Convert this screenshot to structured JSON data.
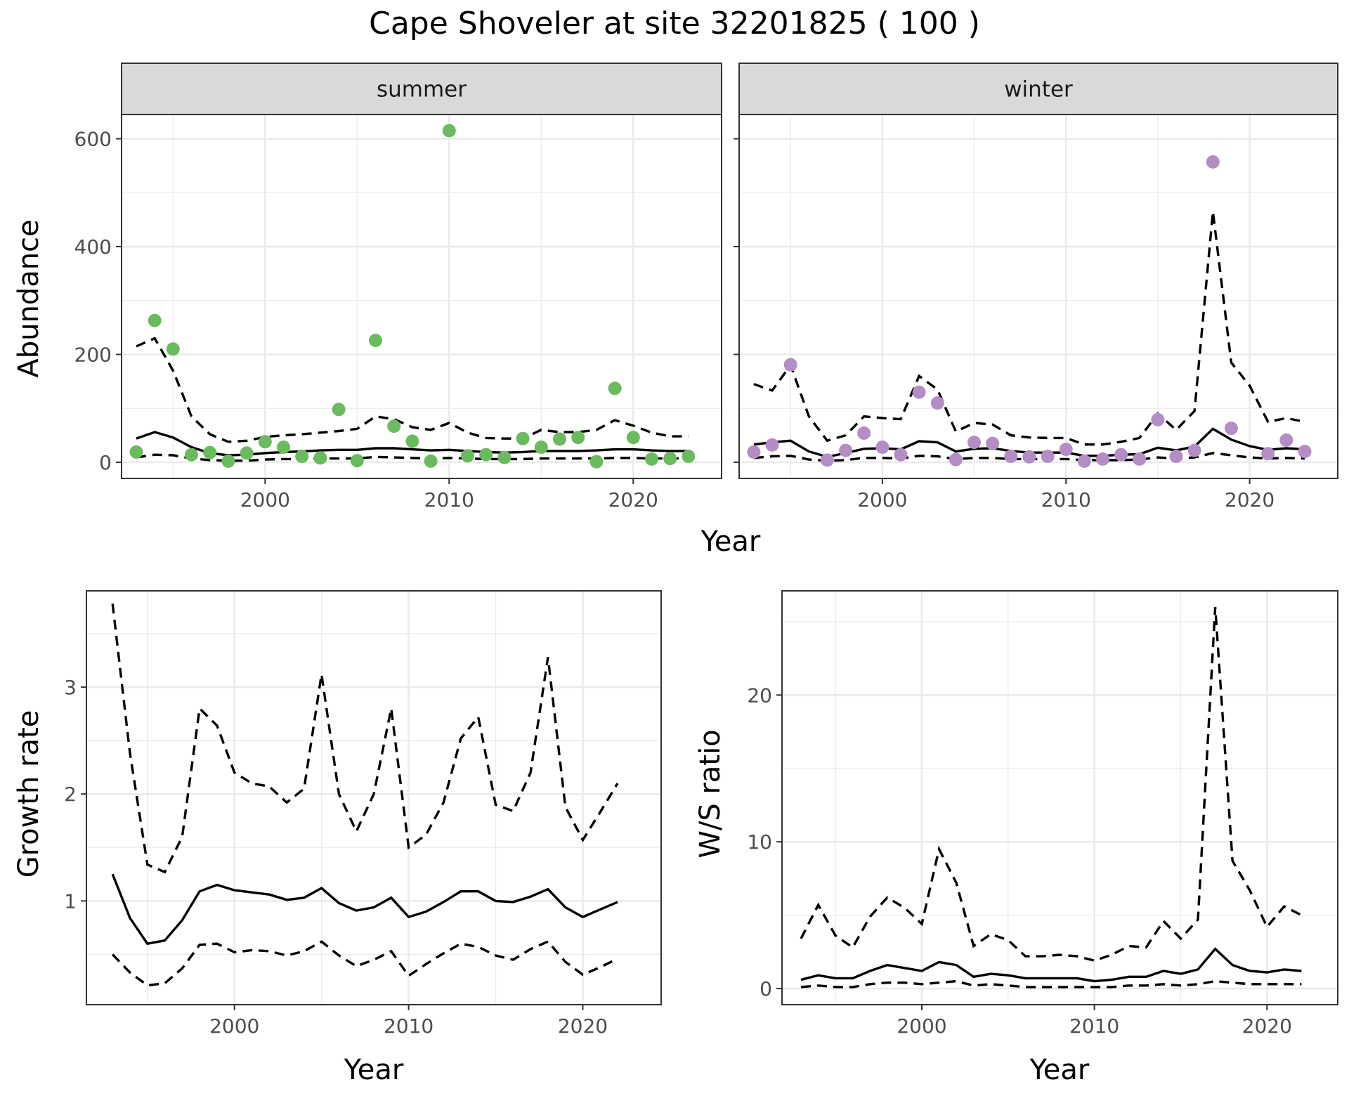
{
  "title": "Cape Shoveler at site 32201825 ( 100 )",
  "abundance_panel": {
    "ylabel": "Abundance",
    "xlabel": "Year",
    "facets": [
      "summer",
      "winter"
    ],
    "colors": {
      "summer": "#6abb5d",
      "winter": "#b48cc6"
    }
  },
  "growth_panel": {
    "ylabel": "Growth rate",
    "xlabel": "Year"
  },
  "ratio_panel": {
    "ylabel": "W/S ratio",
    "xlabel": "Year"
  },
  "chart_data": [
    {
      "type": "scatter",
      "facet": "summer",
      "title": "summer",
      "xlabel": "Year",
      "ylabel": "Abundance",
      "xlim": [
        1992.2,
        2024.8
      ],
      "ylim": [
        -30,
        645
      ],
      "xticks": [
        2000,
        2010,
        2020
      ],
      "yticks": [
        0,
        200,
        400,
        600
      ],
      "grid": true,
      "series": [
        {
          "kind": "points",
          "x": [
            1993,
            1994,
            1995,
            1996,
            1997,
            1998,
            1999,
            2000,
            2001,
            2002,
            2003,
            2004,
            2005,
            2006,
            2007,
            2008,
            2009,
            2010,
            2011,
            2012,
            2013,
            2014,
            2015,
            2016,
            2017,
            2018,
            2019,
            2020,
            2021,
            2022,
            2023
          ],
          "y": [
            19,
            263,
            210,
            14,
            18,
            2,
            17,
            38,
            28,
            11,
            8,
            98,
            3,
            226,
            67,
            39,
            2,
            615,
            12,
            14,
            9,
            44,
            28,
            43,
            46,
            1,
            137,
            46,
            6,
            7,
            11
          ]
        },
        {
          "kind": "estimate",
          "x": [
            1993,
            1994,
            1995,
            1996,
            1997,
            1998,
            1999,
            2000,
            2001,
            2002,
            2003,
            2004,
            2005,
            2006,
            2007,
            2008,
            2009,
            2010,
            2011,
            2012,
            2013,
            2014,
            2015,
            2016,
            2017,
            2018,
            2019,
            2020,
            2021,
            2022,
            2023
          ],
          "y": [
            44,
            56,
            46,
            28,
            17,
            13,
            14,
            17,
            19,
            20,
            22,
            23,
            23,
            26,
            26,
            24,
            22,
            23,
            21,
            19,
            18,
            19,
            21,
            21,
            21,
            22,
            24,
            24,
            22,
            21,
            21
          ]
        },
        {
          "kind": "upper",
          "x": [
            1993,
            1994,
            1995,
            1996,
            1997,
            1998,
            1999,
            2000,
            2001,
            2002,
            2003,
            2004,
            2005,
            2006,
            2007,
            2008,
            2009,
            2010,
            2011,
            2012,
            2013,
            2014,
            2015,
            2016,
            2017,
            2018,
            2019,
            2020,
            2021,
            2022,
            2023
          ],
          "y": [
            215,
            230,
            170,
            85,
            52,
            38,
            40,
            47,
            50,
            52,
            55,
            58,
            62,
            85,
            80,
            65,
            60,
            73,
            55,
            45,
            44,
            44,
            60,
            56,
            56,
            60,
            78,
            68,
            55,
            48,
            48
          ]
        },
        {
          "kind": "lower",
          "x": [
            1993,
            1994,
            1995,
            1996,
            1997,
            1998,
            1999,
            2000,
            2001,
            2002,
            2003,
            2004,
            2005,
            2006,
            2007,
            2008,
            2009,
            2010,
            2011,
            2012,
            2013,
            2014,
            2015,
            2016,
            2017,
            2018,
            2019,
            2020,
            2021,
            2022,
            2023
          ],
          "y": [
            9,
            14,
            13,
            7,
            4,
            3,
            3,
            5,
            6,
            6,
            7,
            7,
            7,
            10,
            9,
            8,
            7,
            8,
            7,
            6,
            6,
            6,
            7,
            7,
            7,
            7,
            8,
            8,
            7,
            7,
            7
          ]
        }
      ]
    },
    {
      "type": "scatter",
      "facet": "winter",
      "title": "winter",
      "xlabel": "Year",
      "ylabel": "Abundance",
      "xlim": [
        1992.2,
        2024.8
      ],
      "ylim": [
        -30,
        645
      ],
      "xticks": [
        2000,
        2010,
        2020
      ],
      "yticks": [
        0,
        200,
        400,
        600
      ],
      "grid": true,
      "series": [
        {
          "kind": "points",
          "x": [
            1993,
            1994,
            1995,
            1997,
            1998,
            1999,
            2000,
            2001,
            2002,
            2003,
            2004,
            2005,
            2006,
            2007,
            2008,
            2009,
            2010,
            2011,
            2012,
            2013,
            2014,
            2015,
            2016,
            2017,
            2018,
            2019,
            2021,
            2022,
            2023
          ],
          "y": [
            19,
            32,
            181,
            4,
            22,
            54,
            28,
            14,
            130,
            110,
            5,
            37,
            35,
            11,
            10,
            11,
            24,
            2,
            6,
            14,
            6,
            79,
            11,
            22,
            557,
            63,
            16,
            41,
            20
          ]
        },
        {
          "kind": "estimate",
          "x": [
            1993,
            1994,
            1995,
            1996,
            1997,
            1998,
            1999,
            2000,
            2001,
            2002,
            2003,
            2004,
            2005,
            2006,
            2007,
            2008,
            2009,
            2010,
            2011,
            2012,
            2013,
            2014,
            2015,
            2016,
            2017,
            2018,
            2019,
            2020,
            2021,
            2022,
            2023
          ],
          "y": [
            33,
            37,
            40,
            20,
            10,
            17,
            25,
            26,
            24,
            39,
            37,
            20,
            25,
            26,
            21,
            18,
            18,
            18,
            12,
            12,
            14,
            15,
            27,
            22,
            29,
            62,
            42,
            30,
            23,
            26,
            24
          ]
        },
        {
          "kind": "upper",
          "x": [
            1993,
            1994,
            1995,
            1996,
            1997,
            1998,
            1999,
            2000,
            2001,
            2002,
            2003,
            2004,
            2005,
            2006,
            2007,
            2008,
            2009,
            2010,
            2011,
            2012,
            2013,
            2014,
            2015,
            2016,
            2017,
            2018,
            2019,
            2020,
            2021,
            2022,
            2023
          ],
          "y": [
            145,
            133,
            180,
            85,
            40,
            50,
            85,
            82,
            80,
            160,
            135,
            57,
            73,
            70,
            50,
            46,
            45,
            45,
            33,
            33,
            38,
            45,
            90,
            60,
            95,
            465,
            185,
            142,
            75,
            82,
            75
          ]
        },
        {
          "kind": "lower",
          "x": [
            1993,
            1994,
            1995,
            1996,
            1997,
            1998,
            1999,
            2000,
            2001,
            2002,
            2003,
            2004,
            2005,
            2006,
            2007,
            2008,
            2009,
            2010,
            2011,
            2012,
            2013,
            2014,
            2015,
            2016,
            2017,
            2018,
            2019,
            2020,
            2021,
            2022,
            2023
          ],
          "y": [
            8,
            11,
            12,
            5,
            3,
            4,
            8,
            8,
            7,
            12,
            11,
            6,
            8,
            8,
            6,
            6,
            6,
            6,
            4,
            4,
            4,
            5,
            9,
            7,
            9,
            17,
            13,
            9,
            7,
            8,
            7
          ]
        }
      ]
    },
    {
      "type": "line",
      "title": "",
      "xlabel": "Year",
      "ylabel": "Growth rate",
      "xlim": [
        1991.5,
        2024.5
      ],
      "ylim": [
        0.03,
        3.9
      ],
      "xticks": [
        2000,
        2010,
        2020
      ],
      "yticks": [
        1,
        2,
        3
      ],
      "grid": true,
      "series": [
        {
          "kind": "estimate",
          "x": [
            1993,
            1994,
            1995,
            1996,
            1997,
            1998,
            1999,
            2000,
            2001,
            2002,
            2003,
            2004,
            2005,
            2006,
            2007,
            2008,
            2009,
            2010,
            2011,
            2012,
            2013,
            2014,
            2015,
            2016,
            2017,
            2018,
            2019,
            2020,
            2021,
            2022
          ],
          "y": [
            1.25,
            0.84,
            0.6,
            0.63,
            0.82,
            1.09,
            1.15,
            1.1,
            1.08,
            1.06,
            1.01,
            1.03,
            1.12,
            0.98,
            0.91,
            0.94,
            1.03,
            0.85,
            0.9,
            0.99,
            1.09,
            1.09,
            1.0,
            0.99,
            1.04,
            1.11,
            0.94,
            0.85,
            0.92,
            0.99
          ]
        },
        {
          "kind": "upper",
          "x": [
            1993,
            1994,
            1995,
            1996,
            1997,
            1998,
            1999,
            2000,
            2001,
            2002,
            2003,
            2004,
            2005,
            2006,
            2007,
            2008,
            2009,
            2010,
            2011,
            2012,
            2013,
            2014,
            2015,
            2016,
            2017,
            2018,
            2019,
            2020,
            2021,
            2022
          ],
          "y": [
            3.78,
            2.38,
            1.34,
            1.27,
            1.6,
            2.8,
            2.64,
            2.2,
            2.1,
            2.07,
            1.92,
            2.05,
            3.12,
            2.0,
            1.65,
            2.0,
            2.8,
            1.5,
            1.62,
            1.92,
            2.52,
            2.72,
            1.9,
            1.84,
            2.2,
            3.28,
            1.88,
            1.57,
            1.83,
            2.1
          ]
        },
        {
          "kind": "lower",
          "x": [
            1993,
            1994,
            1995,
            1996,
            1997,
            1998,
            1999,
            2000,
            2001,
            2002,
            2003,
            2004,
            2005,
            2006,
            2007,
            2008,
            2009,
            2010,
            2011,
            2012,
            2013,
            2014,
            2015,
            2016,
            2017,
            2018,
            2019,
            2020,
            2021,
            2022
          ],
          "y": [
            0.5,
            0.33,
            0.21,
            0.23,
            0.37,
            0.59,
            0.6,
            0.52,
            0.54,
            0.53,
            0.49,
            0.53,
            0.62,
            0.49,
            0.39,
            0.45,
            0.53,
            0.3,
            0.41,
            0.51,
            0.6,
            0.57,
            0.49,
            0.45,
            0.55,
            0.62,
            0.43,
            0.31,
            0.38,
            0.46
          ]
        }
      ]
    },
    {
      "type": "line",
      "title": "",
      "xlabel": "Year",
      "ylabel": "W/S ratio",
      "xlim": [
        1991.9,
        2024.1
      ],
      "ylim": [
        -1.1,
        27.1
      ],
      "xticks": [
        2000,
        2010,
        2020
      ],
      "yticks": [
        0,
        10,
        20
      ],
      "grid": true,
      "series": [
        {
          "kind": "estimate",
          "x": [
            1993,
            1994,
            1995,
            1996,
            1997,
            1998,
            1999,
            2000,
            2001,
            2002,
            2003,
            2004,
            2005,
            2006,
            2007,
            2008,
            2009,
            2010,
            2011,
            2012,
            2013,
            2014,
            2015,
            2016,
            2017,
            2018,
            2019,
            2020,
            2021,
            2022
          ],
          "y": [
            0.6,
            0.9,
            0.7,
            0.7,
            1.2,
            1.6,
            1.4,
            1.2,
            1.8,
            1.6,
            0.8,
            1.0,
            0.9,
            0.7,
            0.7,
            0.7,
            0.7,
            0.5,
            0.6,
            0.8,
            0.8,
            1.2,
            1.0,
            1.3,
            2.7,
            1.6,
            1.2,
            1.1,
            1.3,
            1.2
          ]
        },
        {
          "kind": "upper",
          "x": [
            1993,
            1994,
            1995,
            1996,
            1997,
            1998,
            1999,
            2000,
            2001,
            2002,
            2003,
            2004,
            2005,
            2006,
            2007,
            2008,
            2009,
            2010,
            2011,
            2012,
            2013,
            2014,
            2015,
            2016,
            2017,
            2018,
            2019,
            2020,
            2021,
            2022
          ],
          "y": [
            3.4,
            5.7,
            3.6,
            2.8,
            4.9,
            6.2,
            5.5,
            4.4,
            9.5,
            7.2,
            2.9,
            3.7,
            3.3,
            2.2,
            2.2,
            2.3,
            2.2,
            1.9,
            2.3,
            2.9,
            2.8,
            4.6,
            3.4,
            4.7,
            26.0,
            8.7,
            6.7,
            4.2,
            5.6,
            5.0
          ]
        },
        {
          "kind": "lower",
          "x": [
            1993,
            1994,
            1995,
            1996,
            1997,
            1998,
            1999,
            2000,
            2001,
            2002,
            2003,
            2004,
            2005,
            2006,
            2007,
            2008,
            2009,
            2010,
            2011,
            2012,
            2013,
            2014,
            2015,
            2016,
            2017,
            2018,
            2019,
            2020,
            2021,
            2022
          ],
          "y": [
            0.1,
            0.2,
            0.1,
            0.1,
            0.3,
            0.4,
            0.4,
            0.3,
            0.4,
            0.5,
            0.2,
            0.3,
            0.2,
            0.1,
            0.1,
            0.1,
            0.1,
            0.1,
            0.1,
            0.2,
            0.2,
            0.3,
            0.2,
            0.3,
            0.5,
            0.4,
            0.3,
            0.3,
            0.3,
            0.3
          ]
        }
      ]
    }
  ]
}
